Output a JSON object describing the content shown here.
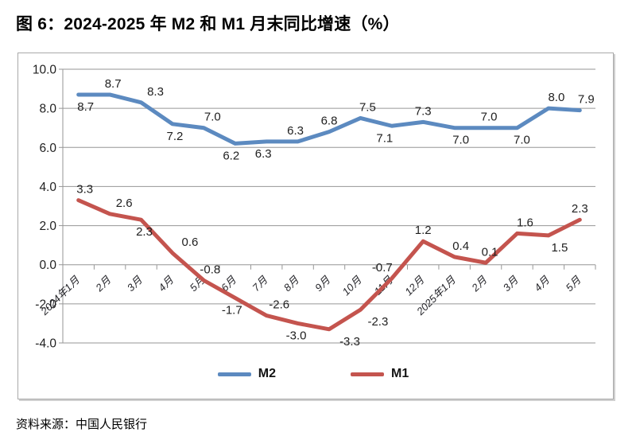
{
  "page": {
    "title": "图 6：2024-2025 年 M2 和 M1 月末同比增速（%）",
    "source": "资料来源：中国人民银行"
  },
  "chart_data": {
    "type": "line",
    "title": "2024-2025 年 M2 和 M1 月末同比增速（%）",
    "categories": [
      "2024年1月",
      "2月",
      "3月",
      "4月",
      "5月",
      "6月",
      "7月",
      "8月",
      "9月",
      "10月",
      "11月",
      "12月",
      "2025年1月",
      "2月",
      "3月",
      "4月",
      "5月"
    ],
    "series": [
      {
        "name": "M2",
        "color": "#5C8AC0",
        "values": [
          8.7,
          8.7,
          8.3,
          7.2,
          7.0,
          6.2,
          6.3,
          6.3,
          6.8,
          7.5,
          7.1,
          7.3,
          7.0,
          7.0,
          7.0,
          8.0,
          7.9
        ],
        "label_sides": [
          "below",
          "above",
          "above",
          "below",
          "above",
          "below",
          "below",
          "above",
          "above",
          "above",
          "below",
          "above",
          "below",
          "above",
          "below",
          "above",
          "above"
        ],
        "label_dx": [
          9,
          4,
          18,
          3,
          11,
          -5,
          -4,
          -3,
          0,
          9,
          -9,
          0,
          8,
          4,
          6,
          10,
          8
        ]
      },
      {
        "name": "M1",
        "color": "#C4544E",
        "values": [
          3.3,
          2.6,
          2.3,
          0.6,
          -0.8,
          -1.7,
          -2.6,
          -3.0,
          -3.3,
          -2.3,
          -0.7,
          1.2,
          0.4,
          0.1,
          1.6,
          1.5,
          2.3
        ],
        "label_sides": [
          "above",
          "above",
          "below",
          "above",
          "above",
          "below",
          "above",
          "below",
          "below",
          "below",
          "above",
          "above",
          "above",
          "above",
          "above",
          "below",
          "above"
        ],
        "label_dx": [
          8,
          18,
          4,
          22,
          8,
          -4,
          16,
          -2,
          26,
          22,
          -12,
          0,
          8,
          5,
          10,
          14,
          0
        ]
      }
    ],
    "ylim": [
      -4,
      10
    ],
    "yticks": [
      10,
      8,
      6,
      4,
      2,
      0,
      -2,
      -4
    ],
    "ytick_format": "one-decimal",
    "grid": true,
    "legend_position": "bottom-center",
    "axis_color": "#969696",
    "label_color": "#1f1f1f"
  }
}
